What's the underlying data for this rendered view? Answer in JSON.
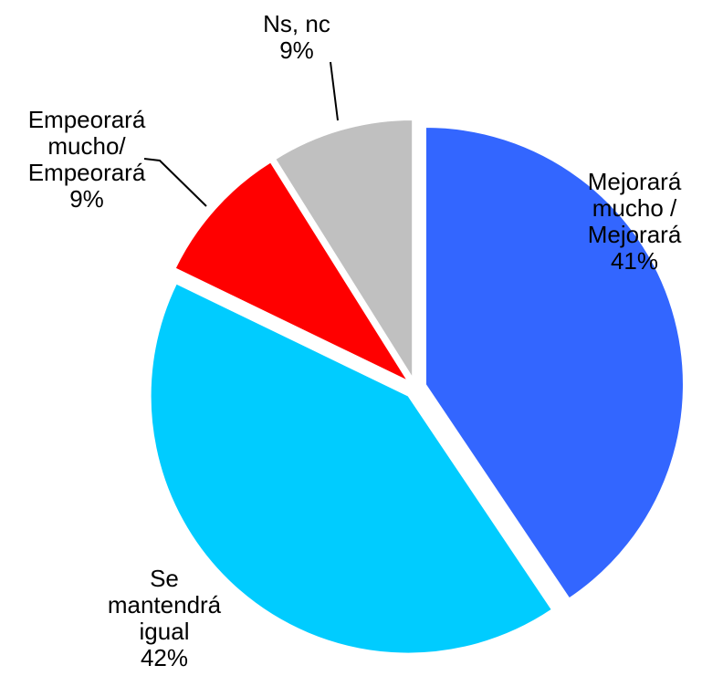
{
  "chart_data": {
    "type": "pie",
    "categories": [
      "Mejorará mucho / Mejorará",
      "Se mantendrá igual",
      "Empeorará mucho/ Empeorará",
      "Ns, nc"
    ],
    "values": [
      41,
      42,
      9,
      9
    ],
    "value_labels": [
      "41%",
      "42%",
      "9%",
      "9%"
    ],
    "colors": [
      "#3366ff",
      "#00ccff",
      "#ff0000",
      "#c0c0c0"
    ]
  }
}
